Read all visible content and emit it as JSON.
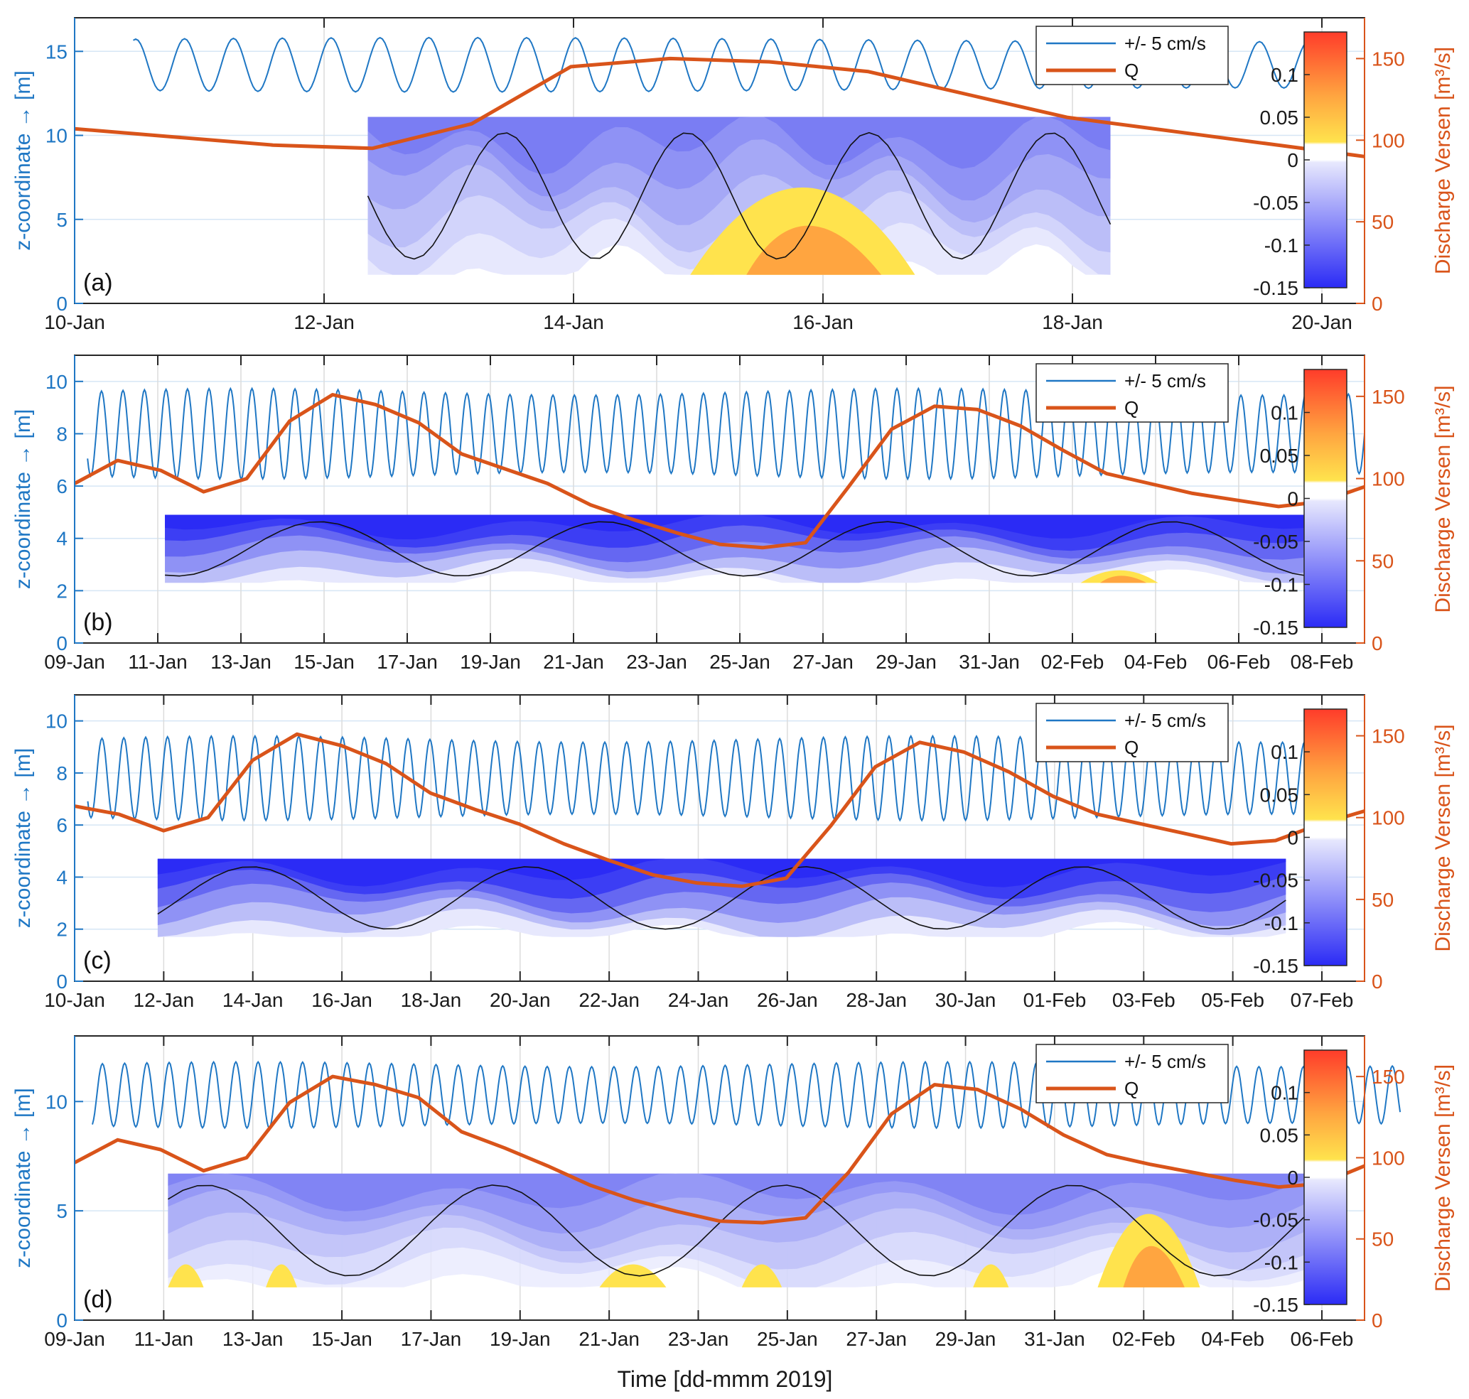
{
  "figure": {
    "xaxis_title": "Time [dd-mmm 2019]"
  },
  "colors": {
    "tide": "#1f77c4",
    "discharge": "#d9541a",
    "neg_colormap": [
      "#2b2bf5",
      "#3c3ef4",
      "#5152f2",
      "#6567f2",
      "#7a7df3",
      "#8f92f5",
      "#a5a8f6",
      "#bbbef8",
      "#d2d4fb",
      "#e7e8fd"
    ],
    "pos_colormap": [
      "#ffe34d",
      "#ffcf4a",
      "#ffba45",
      "#ffa540",
      "#ff903b",
      "#ff7b36",
      "#ff6632",
      "#ff512e",
      "#ff3c2a"
    ]
  },
  "chart_data": [
    {
      "type": "area",
      "panel": "(a)",
      "x_tick_labels": [
        "10-Jan",
        "12-Jan",
        "14-Jan",
        "16-Jan",
        "18-Jan",
        "20-Jan"
      ],
      "x_range": [
        "10-Jan",
        "20-Jan 21:00"
      ],
      "ylabel_left": "z-coordinate → [m]",
      "ylabel_right": "Discharge Versen [m³/s]",
      "ylim_left": [
        0,
        17
      ],
      "yticks_left": [
        0,
        5,
        10,
        15
      ],
      "ylim_right": [
        0,
        175
      ],
      "yticks_right": [
        0,
        50,
        100,
        150
      ],
      "colorbar": {
        "label_ticks": [
          "0.1",
          "0.05",
          "0",
          "-0.05",
          "-0.1",
          "-0.15"
        ],
        "range": [
          -0.15,
          0.15
        ]
      },
      "legend": [
        "+/- 5 cm/s",
        "Q"
      ],
      "legend_position": "top-right",
      "series": [
        {
          "name": "+/- 5 cm/s",
          "kind": "tide",
          "start_day": 0.6,
          "end_day": 12.7,
          "center": 14.2,
          "amplitude": 1.5,
          "cycles_per_day": 2
        },
        {
          "name": "Q",
          "kind": "discharge",
          "days": [
            0,
            1,
            2,
            3,
            4,
            5,
            6,
            7,
            8,
            9,
            10,
            11,
            12,
            13
          ],
          "values": [
            107,
            102,
            97,
            95,
            110,
            145,
            150,
            148,
            142,
            128,
            114,
            106,
            98,
            90
          ]
        }
      ],
      "velocity_fill": {
        "start_day": 3.0,
        "end_day": 10.6,
        "z_top": 11.1,
        "z_bottom": 1.7,
        "negative_zones": [
          "3-7 Jan wedge",
          "13-16 Jan core -0.15",
          "17-19 Jan"
        ],
        "positive_zone": "15.5-17.7 Jan, peak ~0.12 near 16.8 Jan"
      }
    },
    {
      "type": "area",
      "panel": "(b)",
      "x_tick_labels": [
        "09-Jan",
        "11-Jan",
        "13-Jan",
        "15-Jan",
        "17-Jan",
        "19-Jan",
        "21-Jan",
        "23-Jan",
        "25-Jan",
        "27-Jan",
        "29-Jan",
        "31-Jan",
        "02-Feb",
        "04-Feb",
        "06-Feb",
        "08-Feb"
      ],
      "ylabel_left": "z-coordinate → [m]",
      "ylabel_right": "Discharge Versen [m³/s]",
      "ylim_left": [
        0,
        11
      ],
      "yticks_left": [
        0,
        2,
        4,
        6,
        8,
        10
      ],
      "ylim_right": [
        0,
        175
      ],
      "yticks_right": [
        0,
        50,
        100,
        150
      ],
      "colorbar": {
        "label_ticks": [
          "0.1",
          "0.05",
          "0",
          "-0.05",
          "-0.1",
          "-0.15"
        ],
        "range": [
          -0.15,
          0.15
        ]
      },
      "legend": [
        "+/- 5 cm/s",
        "Q"
      ],
      "legend_position": "top-right",
      "series": [
        {
          "name": "+/- 5 cm/s",
          "kind": "tide",
          "start_day": 0.3,
          "end_day": 30.0,
          "center": 8.0,
          "amplitude": 1.6,
          "cycles_per_day": 2
        },
        {
          "name": "Q",
          "kind": "discharge",
          "days": [
            0,
            1,
            2,
            3,
            4,
            5,
            6,
            7,
            8,
            9,
            10,
            11,
            12,
            13,
            14,
            15,
            16,
            17,
            18,
            19,
            20,
            21,
            22,
            23,
            24,
            25,
            26,
            27,
            28,
            29,
            30
          ],
          "values": [
            97,
            111,
            105,
            92,
            100,
            135,
            151,
            145,
            134,
            115,
            106,
            97,
            84,
            75,
            67,
            60,
            58,
            61,
            95,
            130,
            144,
            142,
            132,
            117,
            103,
            97,
            91,
            87,
            83,
            86,
            95
          ]
        }
      ],
      "velocity_fill": {
        "start_day": 2.1,
        "end_day": 29.0,
        "z_top": 4.9,
        "z_bottom": 2.3,
        "negative_zones": [
          "surface layer -0.15 throughout"
        ],
        "positive_zone": "1-2 Feb near bed, ~0.05"
      }
    },
    {
      "type": "area",
      "panel": "(c)",
      "x_tick_labels": [
        "10-Jan",
        "12-Jan",
        "14-Jan",
        "16-Jan",
        "18-Jan",
        "20-Jan",
        "22-Jan",
        "24-Jan",
        "26-Jan",
        "28-Jan",
        "30-Jan",
        "01-Feb",
        "03-Feb",
        "05-Feb",
        "07-Feb"
      ],
      "ylabel_left": "z-coordinate → [m]",
      "ylabel_right": "Discharge Versen [m³/s]",
      "ylim_left": [
        0,
        11
      ],
      "yticks_left": [
        0,
        2,
        4,
        6,
        8,
        10
      ],
      "ylim_right": [
        0,
        175
      ],
      "yticks_right": [
        0,
        50,
        100,
        150
      ],
      "colorbar": {
        "label_ticks": [
          "0.1",
          "0.05",
          "0",
          "-0.05",
          "-0.1",
          "-0.15"
        ],
        "range": [
          -0.15,
          0.15
        ]
      },
      "legend": [
        "+/- 5 cm/s",
        "Q"
      ],
      "legend_position": "top-right",
      "series": [
        {
          "name": "+/- 5 cm/s",
          "kind": "tide",
          "start_day": 0.3,
          "end_day": 28.7,
          "center": 7.8,
          "amplitude": 1.5,
          "cycles_per_day": 2
        },
        {
          "name": "Q",
          "kind": "discharge",
          "days": [
            0,
            1,
            2,
            3,
            4,
            5,
            6,
            7,
            8,
            9,
            10,
            11,
            12,
            13,
            14,
            15,
            16,
            17,
            18,
            19,
            20,
            21,
            22,
            23,
            24,
            25,
            26,
            27,
            28,
            29
          ],
          "values": [
            107,
            102,
            92,
            100,
            135,
            151,
            144,
            133,
            115,
            105,
            96,
            84,
            74,
            65,
            60,
            58,
            63,
            95,
            131,
            146,
            140,
            128,
            113,
            102,
            96,
            90,
            84,
            86,
            96,
            104
          ]
        }
      ],
      "velocity_fill": {
        "start_day": 1.9,
        "end_day": 27.7,
        "z_top": 4.7,
        "z_bottom": 1.7,
        "negative_zones": [
          "layer -0.05 to -0.15, stronger near surface"
        ],
        "positive_zone": "none"
      }
    },
    {
      "type": "area",
      "panel": "(d)",
      "x_tick_labels": [
        "09-Jan",
        "11-Jan",
        "13-Jan",
        "15-Jan",
        "17-Jan",
        "19-Jan",
        "21-Jan",
        "23-Jan",
        "25-Jan",
        "27-Jan",
        "29-Jan",
        "31-Jan",
        "02-Feb",
        "04-Feb",
        "06-Feb"
      ],
      "ylabel_left": "z-coordinate → [m]",
      "ylabel_right": "Discharge Versen [m³/s]",
      "ylim_left": [
        0,
        13
      ],
      "yticks_left": [
        0,
        5,
        10
      ],
      "ylim_right": [
        0,
        175
      ],
      "yticks_right": [
        0,
        50,
        100,
        150
      ],
      "colorbar": {
        "label_ticks": [
          "0.1",
          "0.05",
          "0",
          "-0.05",
          "-0.1",
          "-0.15"
        ],
        "range": [
          -0.15,
          0.15
        ]
      },
      "legend": [
        "+/- 5 cm/s",
        "Q"
      ],
      "legend_position": "top-right",
      "series": [
        {
          "name": "+/- 5 cm/s",
          "kind": "tide",
          "start_day": 0.4,
          "end_day": 29.8,
          "center": 10.3,
          "amplitude": 1.4,
          "cycles_per_day": 2
        },
        {
          "name": "Q",
          "kind": "discharge",
          "days": [
            0,
            1,
            2,
            3,
            4,
            5,
            6,
            7,
            8,
            9,
            10,
            11,
            12,
            13,
            14,
            15,
            16,
            17,
            18,
            19,
            20,
            21,
            22,
            23,
            24,
            25,
            26,
            27,
            28,
            29,
            30
          ],
          "values": [
            97,
            111,
            105,
            92,
            100,
            134,
            150,
            145,
            137,
            116,
            106,
            95,
            83,
            74,
            67,
            61,
            60,
            63,
            91,
            127,
            145,
            142,
            130,
            114,
            102,
            96,
            91,
            86,
            82,
            84,
            95
          ]
        }
      ],
      "velocity_fill": {
        "start_day": 2.1,
        "end_day": 28.6,
        "z_top": 6.7,
        "z_bottom": 1.5,
        "negative_zones": [
          "14-15 Jan",
          "18-19 Jan",
          "28-29 Jan"
        ],
        "positive_zone": "several near-bed patches, largest 1-3 Feb"
      }
    }
  ]
}
